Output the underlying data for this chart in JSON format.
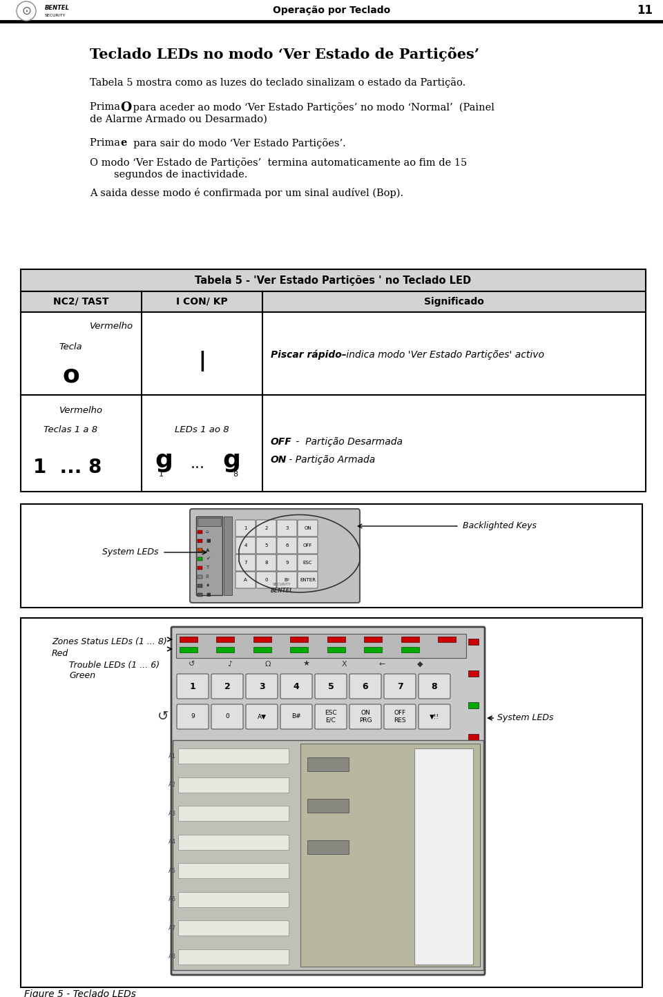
{
  "page_width": 9.6,
  "page_height": 14.44,
  "bg_color": "#ffffff",
  "header_text": "Operação por Teclado",
  "header_page": "11",
  "title": "Teclado LEDs no modo ‘Ver Estado de Partições’",
  "para1": "Tabela 5 mostra como as luzes do teclado sinalizam o estado da Partição.",
  "para5": "A saida desse modo é confirmada por um sinal audível (Bop).",
  "table_title": "Tabela 5 - 'Ver Estado Partições ' no Teclado LED",
  "table_col1": "NC2/ TAST",
  "table_col2": "I CON/ KP",
  "table_col3": "Significado",
  "fig_label": "Figure 5 - Teclado LEDs",
  "label_system_leds_1": "System LEDs",
  "label_backlighted": "Backlighted Keys",
  "label_zones_1": "Zones Status LEDs (1 ... 8)",
  "label_zones_2": "Red",
  "label_trouble_1": "Trouble LEDs (1 ... 6)",
  "label_trouble_2": "Green",
  "label_system_leds_2": "System LEDs",
  "table_header_bg": "#d3d3d3",
  "table_border_color": "#000000",
  "text_color": "#000000"
}
